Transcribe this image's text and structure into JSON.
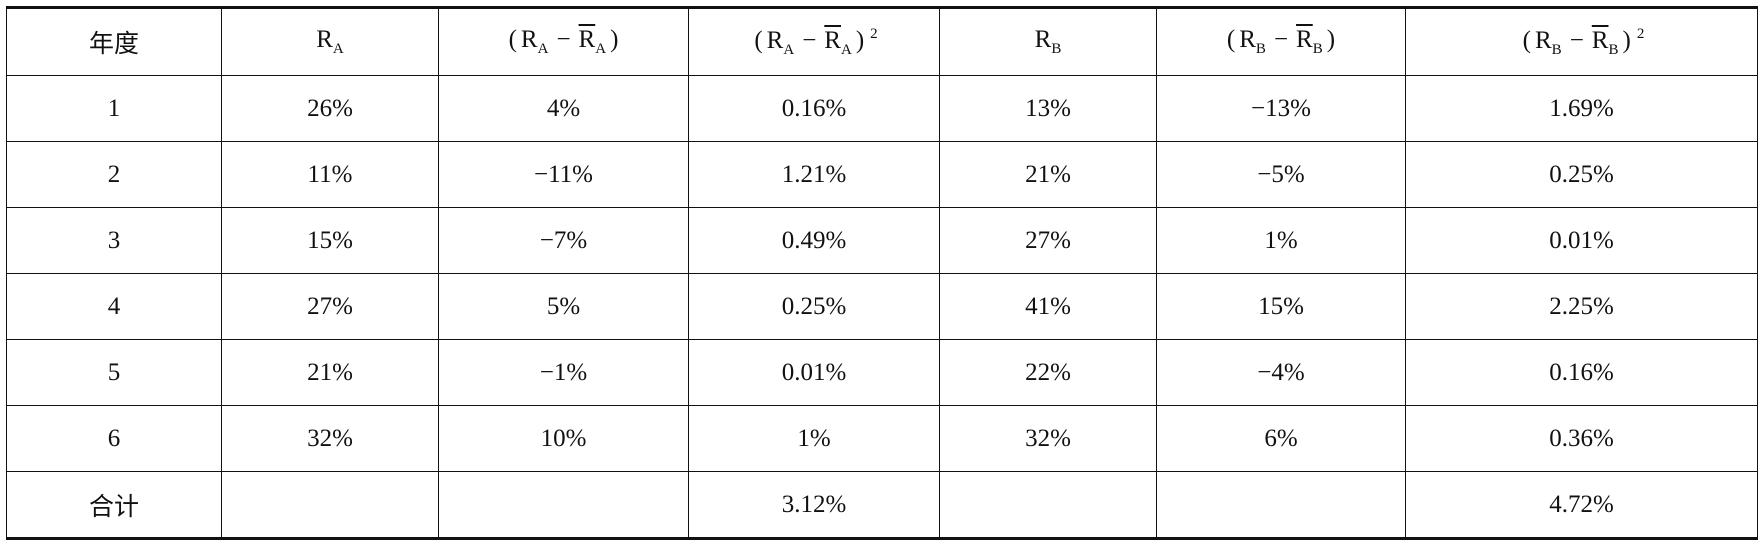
{
  "table": {
    "header": [
      [
        "年度"
      ],
      [
        "R",
        "A"
      ],
      [
        "(",
        "R",
        "A",
        "−",
        "R",
        "A",
        ")"
      ],
      [
        "(",
        "R",
        "A",
        "−",
        "R",
        "A",
        ")",
        "2"
      ],
      [
        "R",
        "B"
      ],
      [
        "(",
        "R",
        "B",
        "−",
        "R",
        "B",
        ")"
      ],
      [
        "(",
        "R",
        "B",
        "−",
        "R",
        "B",
        ")",
        "2"
      ]
    ],
    "rows": [
      [
        "1",
        "26%",
        "4%",
        "0.16%",
        "13%",
        "−13%",
        "1.69%"
      ],
      [
        "2",
        "11%",
        "−11%",
        "1.21%",
        "21%",
        "−5%",
        "0.25%"
      ],
      [
        "3",
        "15%",
        "−7%",
        "0.49%",
        "27%",
        "1%",
        "0.01%"
      ],
      [
        "4",
        "27%",
        "5%",
        "0.25%",
        "41%",
        "15%",
        "2.25%"
      ],
      [
        "5",
        "21%",
        "−1%",
        "0.01%",
        "22%",
        "−4%",
        "0.16%"
      ],
      [
        "6",
        "32%",
        "10%",
        "1%",
        "32%",
        "6%",
        "0.36%"
      ],
      [
        "合计",
        null,
        null,
        "3.12%",
        null,
        null,
        "4.72%"
      ]
    ]
  }
}
